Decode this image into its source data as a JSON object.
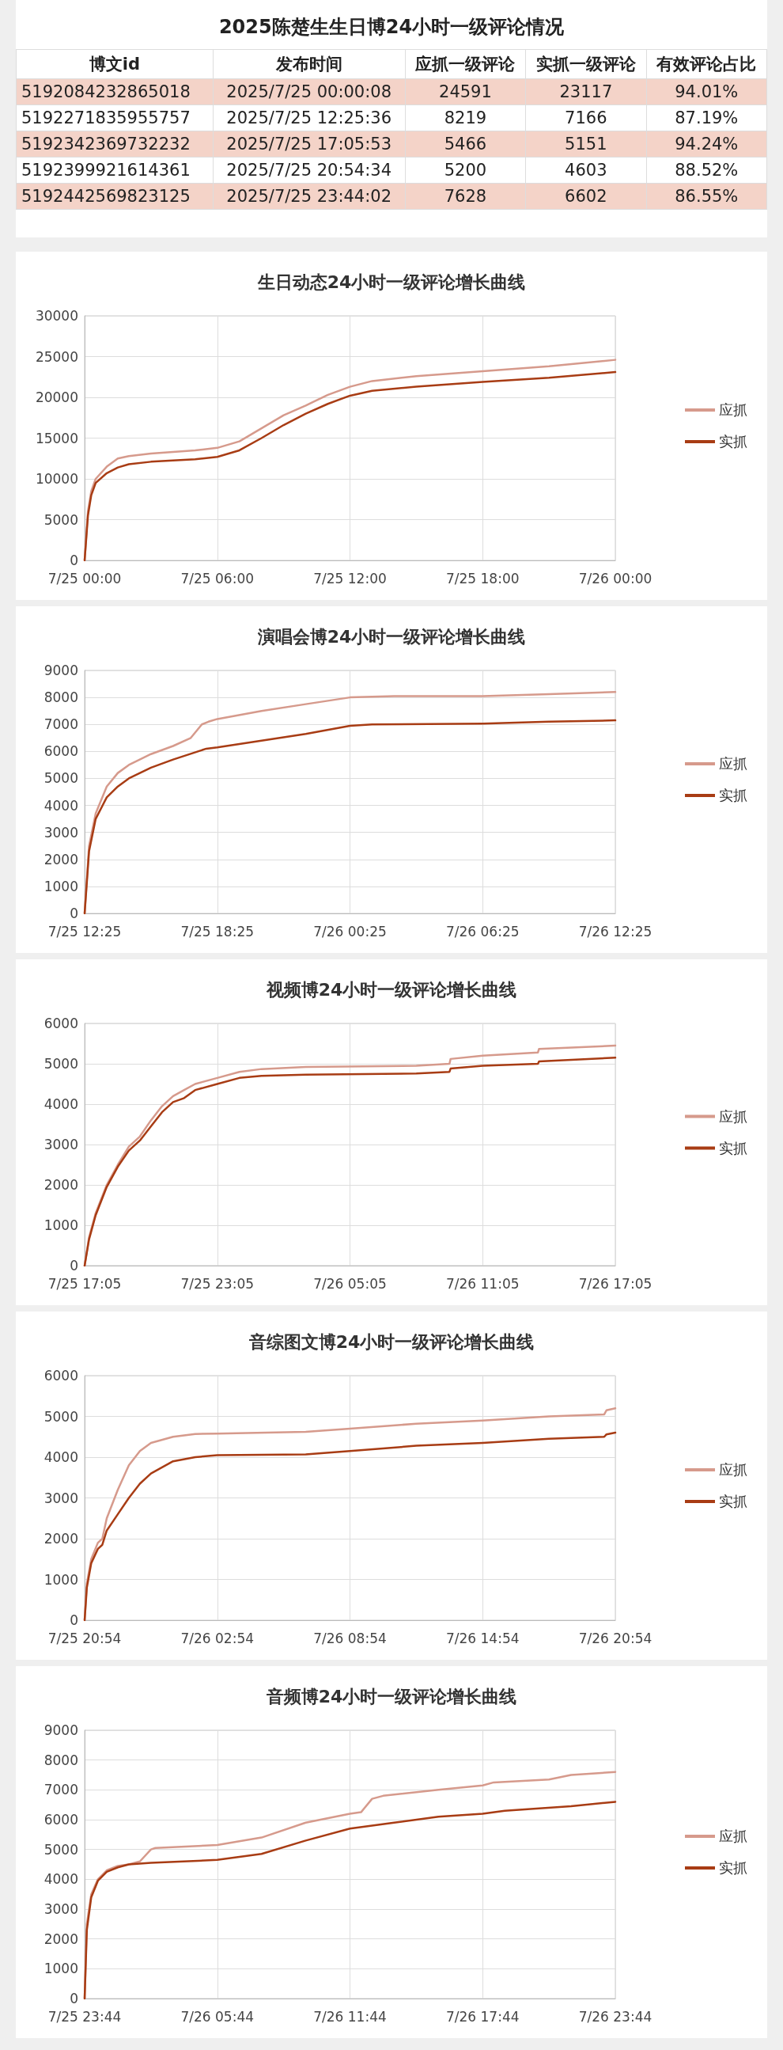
{
  "chart_data": [
    {
      "type": "other",
      "title": "2025陈楚生生日博24小时一级评论情况",
      "categories": [
        "博文id",
        "发布时间",
        "应抓一级评论",
        "实抓一级评论",
        "有效评论占比"
      ],
      "annotations": [
        "5192084232865018",
        "2025/7/25 00:00:08",
        "24591",
        "23117",
        "94.01%",
        "5192271835955757",
        "2025/7/25 12:25:36",
        "8219",
        "7166",
        "87.19%",
        "5192342369732232",
        "2025/7/25 17:05:53",
        "5466",
        "5151",
        "94.24%",
        "5192399921614361",
        "2025/7/25 20:54:34",
        "5200",
        "4603",
        "88.52%",
        "5192442569823125",
        "2025/7/25 23:44:02",
        "7628",
        "6602",
        "86.55%"
      ]
    },
    {
      "type": "line",
      "title": "生日动态24小时一级评论增长曲线",
      "legend": "right",
      "grid": true,
      "line_style": "solid",
      "marker": "none",
      "xlim": [
        "2025-07-25T00:00",
        "2025-07-26T00:00"
      ],
      "xticks": [
        {
          "value": "2025-07-25T00:00",
          "label": "7/25 00:00"
        },
        {
          "value": "2025-07-25T06:00",
          "label": "7/25 06:00"
        },
        {
          "value": "2025-07-25T12:00",
          "label": "7/25 12:00"
        },
        {
          "value": "2025-07-25T18:00",
          "label": "7/25 18:00"
        },
        {
          "value": "2025-07-26T00:00",
          "label": "7/26 00:00"
        }
      ],
      "ylim": [
        0,
        30000
      ],
      "yticks": [
        0,
        5000,
        10000,
        15000,
        20000,
        25000,
        30000
      ],
      "series": [
        {
          "name": "应抓",
          "color": "#d69a8c",
          "x": [
            "2025-07-25T00:00",
            "2025-07-25T00:09",
            "2025-07-25T00:18",
            "2025-07-25T00:30",
            "2025-07-25T01:00",
            "2025-07-25T01:30",
            "2025-07-25T02:00",
            "2025-07-25T03:00",
            "2025-07-25T05:00",
            "2025-07-25T06:00",
            "2025-07-25T07:00",
            "2025-07-25T08:00",
            "2025-07-25T09:00",
            "2025-07-25T10:00",
            "2025-07-25T11:00",
            "2025-07-25T12:00",
            "2025-07-25T13:00",
            "2025-07-25T15:00",
            "2025-07-25T18:00",
            "2025-07-25T21:00",
            "2025-07-26T00:00"
          ],
          "values": [
            0,
            6000,
            8500,
            10000,
            11500,
            12500,
            12800,
            13100,
            13500,
            13800,
            14600,
            16200,
            17800,
            19000,
            20300,
            21300,
            22000,
            22600,
            23200,
            23800,
            24600
          ]
        },
        {
          "name": "实抓",
          "color": "#a83c14",
          "x": [
            "2025-07-25T00:00",
            "2025-07-25T00:09",
            "2025-07-25T00:18",
            "2025-07-25T00:30",
            "2025-07-25T01:00",
            "2025-07-25T01:30",
            "2025-07-25T02:00",
            "2025-07-25T03:00",
            "2025-07-25T05:00",
            "2025-07-25T06:00",
            "2025-07-25T07:00",
            "2025-07-25T08:00",
            "2025-07-25T09:00",
            "2025-07-25T10:00",
            "2025-07-25T11:00",
            "2025-07-25T12:00",
            "2025-07-25T13:00",
            "2025-07-25T15:00",
            "2025-07-25T18:00",
            "2025-07-25T21:00",
            "2025-07-26T00:00"
          ],
          "values": [
            0,
            5500,
            8000,
            9500,
            10700,
            11400,
            11800,
            12100,
            12400,
            12700,
            13500,
            15000,
            16600,
            18000,
            19200,
            20200,
            20800,
            21300,
            21900,
            22400,
            23100
          ]
        }
      ]
    },
    {
      "type": "line",
      "title": "演唱会博24小时一级评论增长曲线",
      "legend": "right",
      "grid": true,
      "line_style": "solid",
      "marker": "none",
      "xlim": [
        "2025-07-25T12:25",
        "2025-07-26T12:25"
      ],
      "xticks": [
        {
          "value": "2025-07-25T12:25",
          "label": "7/25 12:25"
        },
        {
          "value": "2025-07-25T18:25",
          "label": "7/25 18:25"
        },
        {
          "value": "2025-07-26T00:25",
          "label": "7/26 00:25"
        },
        {
          "value": "2025-07-26T06:25",
          "label": "7/26 06:25"
        },
        {
          "value": "2025-07-26T12:25",
          "label": "7/26 12:25"
        }
      ],
      "ylim": [
        0,
        9000
      ],
      "yticks": [
        0,
        1000,
        2000,
        3000,
        4000,
        5000,
        6000,
        7000,
        8000,
        9000
      ],
      "series": [
        {
          "name": "应抓",
          "color": "#d69a8c",
          "x": [
            "2025-07-25T12:25",
            "2025-07-25T12:37",
            "2025-07-25T12:55",
            "2025-07-25T13:25",
            "2025-07-25T13:55",
            "2025-07-25T14:25",
            "2025-07-25T15:25",
            "2025-07-25T16:25",
            "2025-07-25T17:13",
            "2025-07-25T17:43",
            "2025-07-25T18:01",
            "2025-07-25T18:25",
            "2025-07-25T20:25",
            "2025-07-25T22:25",
            "2025-07-26T00:25",
            "2025-07-26T02:25",
            "2025-07-26T06:25",
            "2025-07-26T09:25",
            "2025-07-26T12:25"
          ],
          "values": [
            0,
            2500,
            3700,
            4700,
            5200,
            5500,
            5900,
            6200,
            6500,
            7000,
            7100,
            7200,
            7500,
            7750,
            8000,
            8050,
            8050,
            8120,
            8200
          ]
        },
        {
          "name": "实抓",
          "color": "#a83c14",
          "x": [
            "2025-07-25T12:25",
            "2025-07-25T12:37",
            "2025-07-25T12:55",
            "2025-07-25T13:25",
            "2025-07-25T13:55",
            "2025-07-25T14:25",
            "2025-07-25T15:25",
            "2025-07-25T16:25",
            "2025-07-25T17:55",
            "2025-07-25T18:25",
            "2025-07-25T20:25",
            "2025-07-25T22:25",
            "2025-07-26T00:25",
            "2025-07-26T01:25",
            "2025-07-26T06:25",
            "2025-07-26T09:25",
            "2025-07-26T12:25"
          ],
          "values": [
            0,
            2300,
            3500,
            4300,
            4700,
            5000,
            5400,
            5700,
            6100,
            6150,
            6400,
            6650,
            6950,
            7000,
            7030,
            7100,
            7150
          ]
        }
      ]
    },
    {
      "type": "line",
      "title": "视频博24小时一级评论增长曲线",
      "legend": "right",
      "grid": true,
      "line_style": "solid",
      "marker": "none",
      "xlim": [
        "2025-07-25T17:05",
        "2025-07-26T17:05"
      ],
      "xticks": [
        {
          "value": "2025-07-25T17:05",
          "label": "7/25 17:05"
        },
        {
          "value": "2025-07-25T23:05",
          "label": "7/25 23:05"
        },
        {
          "value": "2025-07-26T05:05",
          "label": "7/26 05:05"
        },
        {
          "value": "2025-07-26T11:05",
          "label": "7/26 11:05"
        },
        {
          "value": "2025-07-26T17:05",
          "label": "7/26 17:05"
        }
      ],
      "ylim": [
        0,
        6000
      ],
      "yticks": [
        0,
        1000,
        2000,
        3000,
        4000,
        5000,
        6000
      ],
      "series": [
        {
          "name": "应抓",
          "color": "#d69a8c",
          "x": [
            "2025-07-25T17:05",
            "2025-07-25T17:17",
            "2025-07-25T17:35",
            "2025-07-25T18:05",
            "2025-07-25T18:35",
            "2025-07-25T19:05",
            "2025-07-25T19:35",
            "2025-07-25T20:05",
            "2025-07-25T20:35",
            "2025-07-25T21:05",
            "2025-07-25T21:35",
            "2025-07-25T22:05",
            "2025-07-25T23:05",
            "2025-07-26T00:05",
            "2025-07-26T01:05",
            "2025-07-26T03:05",
            "2025-07-26T08:05",
            "2025-07-26T09:35",
            "2025-07-26T09:38",
            "2025-07-26T11:05",
            "2025-07-26T13:35",
            "2025-07-26T13:38",
            "2025-07-26T17:05"
          ],
          "values": [
            0,
            700,
            1300,
            2000,
            2500,
            2950,
            3200,
            3600,
            3950,
            4200,
            4350,
            4500,
            4650,
            4800,
            4870,
            4920,
            4950,
            5000,
            5120,
            5200,
            5280,
            5370,
            5450
          ]
        },
        {
          "name": "实抓",
          "color": "#a83c14",
          "x": [
            "2025-07-25T17:05",
            "2025-07-25T17:17",
            "2025-07-25T17:35",
            "2025-07-25T18:05",
            "2025-07-25T18:35",
            "2025-07-25T19:05",
            "2025-07-25T19:35",
            "2025-07-25T20:05",
            "2025-07-25T20:35",
            "2025-07-25T21:05",
            "2025-07-25T21:35",
            "2025-07-25T22:05",
            "2025-07-25T23:05",
            "2025-07-26T00:05",
            "2025-07-26T01:05",
            "2025-07-26T03:05",
            "2025-07-26T08:05",
            "2025-07-26T09:35",
            "2025-07-26T09:38",
            "2025-07-26T11:05",
            "2025-07-26T13:35",
            "2025-07-26T13:38",
            "2025-07-26T17:05"
          ],
          "values": [
            0,
            650,
            1250,
            1950,
            2450,
            2850,
            3100,
            3450,
            3800,
            4050,
            4150,
            4350,
            4500,
            4650,
            4700,
            4730,
            4760,
            4800,
            4880,
            4950,
            5000,
            5060,
            5150
          ]
        }
      ]
    },
    {
      "type": "line",
      "title": "音综图文博24小时一级评论增长曲线",
      "legend": "right",
      "grid": true,
      "line_style": "solid",
      "marker": "none",
      "xlim": [
        "2025-07-25T20:54",
        "2025-07-26T20:54"
      ],
      "xticks": [
        {
          "value": "2025-07-25T20:54",
          "label": "7/25 20:54"
        },
        {
          "value": "2025-07-26T02:54",
          "label": "7/26 02:54"
        },
        {
          "value": "2025-07-26T08:54",
          "label": "7/26 08:54"
        },
        {
          "value": "2025-07-26T14:54",
          "label": "7/26 14:54"
        },
        {
          "value": "2025-07-26T20:54",
          "label": "7/26 20:54"
        }
      ],
      "ylim": [
        0,
        6000
      ],
      "yticks": [
        0,
        1000,
        2000,
        3000,
        4000,
        5000,
        6000
      ],
      "series": [
        {
          "name": "应抓",
          "color": "#d69a8c",
          "x": [
            "2025-07-25T20:54",
            "2025-07-25T21:00",
            "2025-07-25T21:12",
            "2025-07-25T21:30",
            "2025-07-25T21:42",
            "2025-07-25T21:54",
            "2025-07-25T22:24",
            "2025-07-25T22:54",
            "2025-07-25T23:24",
            "2025-07-25T23:54",
            "2025-07-26T00:54",
            "2025-07-26T01:54",
            "2025-07-26T02:54",
            "2025-07-26T06:54",
            "2025-07-26T08:54",
            "2025-07-26T11:54",
            "2025-07-26T14:54",
            "2025-07-26T17:54",
            "2025-07-26T20:24",
            "2025-07-26T20:30",
            "2025-07-26T20:54"
          ],
          "values": [
            0,
            900,
            1500,
            1900,
            2000,
            2500,
            3200,
            3800,
            4150,
            4350,
            4500,
            4570,
            4580,
            4620,
            4700,
            4820,
            4900,
            5000,
            5050,
            5150,
            5200
          ]
        },
        {
          "name": "实抓",
          "color": "#a83c14",
          "x": [
            "2025-07-25T20:54",
            "2025-07-25T21:00",
            "2025-07-25T21:12",
            "2025-07-25T21:30",
            "2025-07-25T21:42",
            "2025-07-25T21:54",
            "2025-07-25T22:24",
            "2025-07-25T22:54",
            "2025-07-25T23:24",
            "2025-07-25T23:54",
            "2025-07-26T00:54",
            "2025-07-26T01:54",
            "2025-07-26T02:54",
            "2025-07-26T06:54",
            "2025-07-26T08:54",
            "2025-07-26T11:54",
            "2025-07-26T14:54",
            "2025-07-26T17:54",
            "2025-07-26T20:24",
            "2025-07-26T20:30",
            "2025-07-26T20:54"
          ],
          "values": [
            0,
            800,
            1400,
            1750,
            1850,
            2200,
            2600,
            3000,
            3350,
            3600,
            3900,
            4000,
            4050,
            4070,
            4150,
            4280,
            4350,
            4450,
            4500,
            4560,
            4600
          ]
        }
      ]
    },
    {
      "type": "line",
      "title": "音频博24小时一级评论增长曲线",
      "legend": "right",
      "grid": true,
      "line_style": "solid",
      "marker": "none",
      "xlim": [
        "2025-07-25T23:44",
        "2025-07-26T23:44"
      ],
      "xticks": [
        {
          "value": "2025-07-25T23:44",
          "label": "7/25 23:44"
        },
        {
          "value": "2025-07-26T05:44",
          "label": "7/26 05:44"
        },
        {
          "value": "2025-07-26T11:44",
          "label": "7/26 11:44"
        },
        {
          "value": "2025-07-26T17:44",
          "label": "7/26 17:44"
        },
        {
          "value": "2025-07-26T23:44",
          "label": "7/26 23:44"
        }
      ],
      "ylim": [
        0,
        9000
      ],
      "yticks": [
        0,
        1000,
        2000,
        3000,
        4000,
        5000,
        6000,
        7000,
        8000,
        9000
      ],
      "series": [
        {
          "name": "应抓",
          "color": "#d69a8c",
          "x": [
            "2025-07-25T23:44",
            "2025-07-25T23:50",
            "2025-07-26T00:02",
            "2025-07-26T00:20",
            "2025-07-26T00:44",
            "2025-07-26T01:14",
            "2025-07-26T01:44",
            "2025-07-26T02:14",
            "2025-07-26T02:44",
            "2025-07-26T02:56",
            "2025-07-26T05:44",
            "2025-07-26T07:44",
            "2025-07-26T09:44",
            "2025-07-26T11:44",
            "2025-07-26T12:14",
            "2025-07-26T12:44",
            "2025-07-26T13:14",
            "2025-07-26T15:44",
            "2025-07-26T17:44",
            "2025-07-26T18:14",
            "2025-07-26T20:44",
            "2025-07-26T21:44",
            "2025-07-26T23:44"
          ],
          "values": [
            0,
            2500,
            3500,
            4000,
            4300,
            4450,
            4500,
            4600,
            5000,
            5050,
            5150,
            5400,
            5900,
            6200,
            6250,
            6700,
            6800,
            7000,
            7150,
            7250,
            7350,
            7500,
            7600
          ]
        },
        {
          "name": "实抓",
          "color": "#a83c14",
          "x": [
            "2025-07-25T23:44",
            "2025-07-25T23:50",
            "2025-07-26T00:02",
            "2025-07-26T00:20",
            "2025-07-26T00:44",
            "2025-07-26T01:14",
            "2025-07-26T01:44",
            "2025-07-26T02:44",
            "2025-07-26T05:44",
            "2025-07-26T07:44",
            "2025-07-26T09:44",
            "2025-07-26T11:44",
            "2025-07-26T13:44",
            "2025-07-26T15:44",
            "2025-07-26T17:44",
            "2025-07-26T18:44",
            "2025-07-26T21:44",
            "2025-07-26T23:44"
          ],
          "values": [
            0,
            2300,
            3400,
            3950,
            4250,
            4400,
            4500,
            4550,
            4650,
            4850,
            5300,
            5700,
            5900,
            6100,
            6200,
            6300,
            6450,
            6600
          ]
        }
      ]
    }
  ]
}
